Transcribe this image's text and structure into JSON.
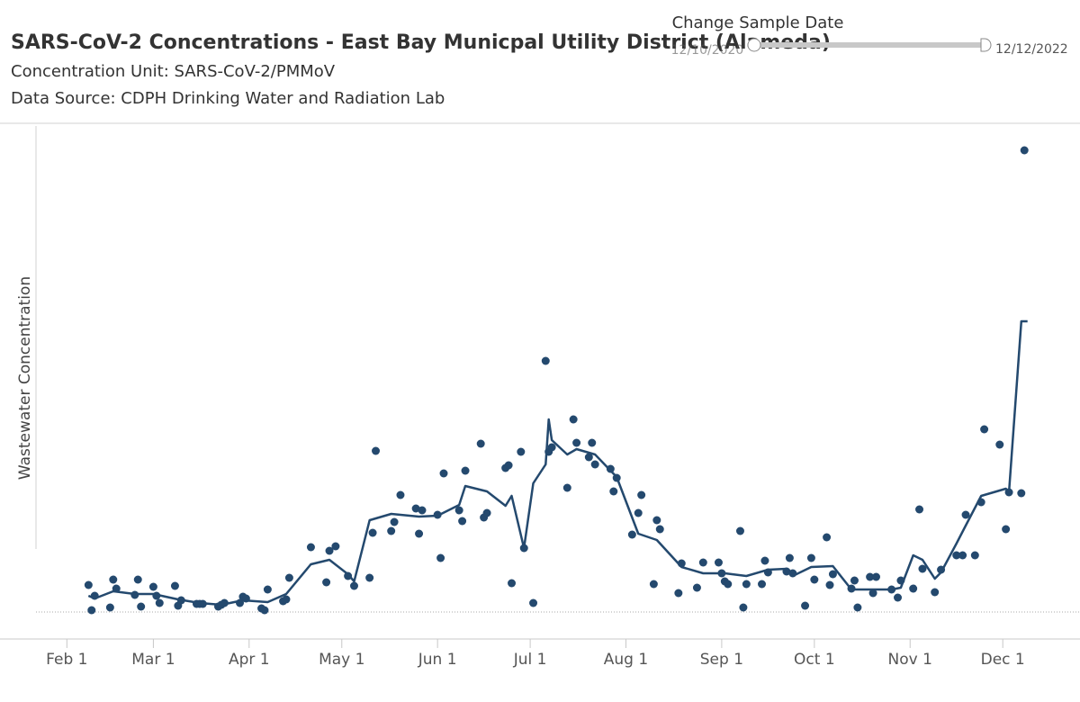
{
  "header": {
    "title": "SARS-CoV-2 Concentrations - East Bay Municpal Utility District (Alameda)",
    "subtitle": "Concentration Unit:  SARS-CoV-2/PMMoV",
    "source": "Data Source: CDPH Drinking Water and Radiation Lab"
  },
  "filter": {
    "label": "Change Sample Date",
    "start": "12/10/2020",
    "end": "12/12/2022"
  },
  "chart_data": {
    "type": "scatter",
    "ylabel": "Wastewater Concentration",
    "color": "#24496e",
    "xlim": [
      "2022-01-22",
      "2022-12-26"
    ],
    "xticks": [
      {
        "value": "2022-02-01",
        "label": "Feb 1"
      },
      {
        "value": "2022-03-01",
        "label": "Mar 1"
      },
      {
        "value": "2022-04-01",
        "label": "Apr 1"
      },
      {
        "value": "2022-05-01",
        "label": "May 1"
      },
      {
        "value": "2022-06-01",
        "label": "Jun 1"
      },
      {
        "value": "2022-07-01",
        "label": "Jul 1"
      },
      {
        "value": "2022-08-01",
        "label": "Aug 1"
      },
      {
        "value": "2022-09-01",
        "label": "Sep 1"
      },
      {
        "value": "2022-10-01",
        "label": "Oct 1"
      },
      {
        "value": "2022-11-01",
        "label": "Nov 1"
      },
      {
        "value": "2022-12-01",
        "label": "Dec 1"
      }
    ],
    "ylim": [
      -30,
      542
    ],
    "reference_line": 0,
    "x": [
      "2022-02-08",
      "2022-02-09",
      "2022-02-10",
      "2022-02-15",
      "2022-02-16",
      "2022-02-17",
      "2022-02-23",
      "2022-02-24",
      "2022-02-25",
      "2022-03-01",
      "2022-03-02",
      "2022-03-03",
      "2022-03-08",
      "2022-03-09",
      "2022-03-10",
      "2022-03-15",
      "2022-03-16",
      "2022-03-17",
      "2022-03-22",
      "2022-03-23",
      "2022-03-24",
      "2022-03-29",
      "2022-03-30",
      "2022-03-31",
      "2022-04-05",
      "2022-04-06",
      "2022-04-07",
      "2022-04-12",
      "2022-04-13",
      "2022-04-14",
      "2022-04-21",
      "2022-04-26",
      "2022-04-27",
      "2022-04-29",
      "2022-05-03",
      "2022-05-05",
      "2022-05-10",
      "2022-05-11",
      "2022-05-12",
      "2022-05-17",
      "2022-05-18",
      "2022-05-20",
      "2022-05-25",
      "2022-05-26",
      "2022-05-27",
      "2022-06-01",
      "2022-06-02",
      "2022-06-03",
      "2022-06-08",
      "2022-06-09",
      "2022-06-10",
      "2022-06-15",
      "2022-06-16",
      "2022-06-17",
      "2022-06-23",
      "2022-06-24",
      "2022-06-25",
      "2022-06-28",
      "2022-06-29",
      "2022-07-02",
      "2022-07-06",
      "2022-07-07",
      "2022-07-08",
      "2022-07-13",
      "2022-07-15",
      "2022-07-16",
      "2022-07-20",
      "2022-07-21",
      "2022-07-22",
      "2022-07-27",
      "2022-07-28",
      "2022-07-29",
      "2022-08-03",
      "2022-08-05",
      "2022-08-06",
      "2022-08-10",
      "2022-08-11",
      "2022-08-12",
      "2022-08-18",
      "2022-08-19",
      "2022-08-24",
      "2022-08-26",
      "2022-08-31",
      "2022-09-01",
      "2022-09-02",
      "2022-09-03",
      "2022-09-07",
      "2022-09-08",
      "2022-09-09",
      "2022-09-14",
      "2022-09-15",
      "2022-09-16",
      "2022-09-22",
      "2022-09-23",
      "2022-09-24",
      "2022-09-28",
      "2022-09-30",
      "2022-10-01",
      "2022-10-05",
      "2022-10-06",
      "2022-10-07",
      "2022-10-13",
      "2022-10-14",
      "2022-10-15",
      "2022-10-19",
      "2022-10-20",
      "2022-10-21",
      "2022-10-26",
      "2022-10-28",
      "2022-10-29",
      "2022-11-02",
      "2022-11-04",
      "2022-11-05",
      "2022-11-09",
      "2022-11-11",
      "2022-11-16",
      "2022-11-18",
      "2022-11-19",
      "2022-11-22",
      "2022-11-24",
      "2022-11-25",
      "2022-11-30",
      "2022-12-02",
      "2022-12-03",
      "2022-12-07",
      "2022-12-08"
    ],
    "values": [
      30,
      2,
      18,
      5,
      36,
      26,
      19,
      36,
      6,
      28,
      18,
      10,
      29,
      7,
      13,
      9,
      9,
      9,
      6,
      8,
      10,
      10,
      17,
      15,
      4,
      2,
      25,
      12,
      14,
      38,
      72,
      33,
      68,
      73,
      40,
      29,
      38,
      88,
      179,
      90,
      100,
      130,
      115,
      87,
      113,
      108,
      60,
      154,
      113,
      101,
      157,
      187,
      105,
      110,
      160,
      163,
      32,
      178,
      71,
      10,
      279,
      178,
      183,
      138,
      214,
      188,
      172,
      188,
      164,
      159,
      134,
      149,
      86,
      110,
      130,
      31,
      102,
      92,
      21,
      54,
      27,
      55,
      55,
      43,
      34,
      31,
      90,
      5,
      31,
      31,
      57,
      44,
      45,
      60,
      43,
      7,
      60,
      36,
      83,
      30,
      42,
      26,
      35,
      5,
      39,
      21,
      39,
      25,
      16,
      35,
      26,
      114,
      48,
      22,
      47,
      63,
      63,
      108,
      63,
      122,
      203,
      186,
      92,
      133,
      132,
      513
    ],
    "line_x": [
      "2022-02-08",
      "2022-02-10",
      "2022-02-16",
      "2022-02-23",
      "2022-03-01",
      "2022-03-09",
      "2022-03-16",
      "2022-03-23",
      "2022-03-30",
      "2022-04-07",
      "2022-04-13",
      "2022-04-21",
      "2022-04-27",
      "2022-05-03",
      "2022-05-05",
      "2022-05-10",
      "2022-05-17",
      "2022-05-26",
      "2022-06-01",
      "2022-06-08",
      "2022-06-10",
      "2022-06-17",
      "2022-06-23",
      "2022-06-25",
      "2022-06-29",
      "2022-07-02",
      "2022-07-06",
      "2022-07-07",
      "2022-07-08",
      "2022-07-13",
      "2022-07-16",
      "2022-07-22",
      "2022-07-29",
      "2022-08-05",
      "2022-08-11",
      "2022-08-19",
      "2022-08-26",
      "2022-09-02",
      "2022-09-09",
      "2022-09-16",
      "2022-09-22",
      "2022-09-24",
      "2022-09-30",
      "2022-10-07",
      "2022-10-13",
      "2022-10-20",
      "2022-10-26",
      "2022-10-29",
      "2022-11-02",
      "2022-11-05",
      "2022-11-09",
      "2022-11-11",
      "2022-11-16",
      "2022-11-19",
      "2022-11-24",
      "2022-12-02",
      "2022-12-03",
      "2022-12-07",
      "2022-12-09"
    ],
    "line_values": [
      18,
      15,
      23,
      20,
      20,
      14,
      10,
      8,
      13,
      11,
      20,
      53,
      58,
      42,
      34,
      102,
      109,
      106,
      107,
      119,
      140,
      134,
      118,
      129,
      71,
      143,
      164,
      214,
      191,
      175,
      181,
      175,
      150,
      87,
      80,
      50,
      43,
      43,
      40,
      47,
      48,
      40,
      50,
      51,
      25,
      25,
      25,
      27,
      63,
      58,
      37,
      44,
      76,
      96,
      129,
      137,
      133,
      323,
      323
    ]
  }
}
